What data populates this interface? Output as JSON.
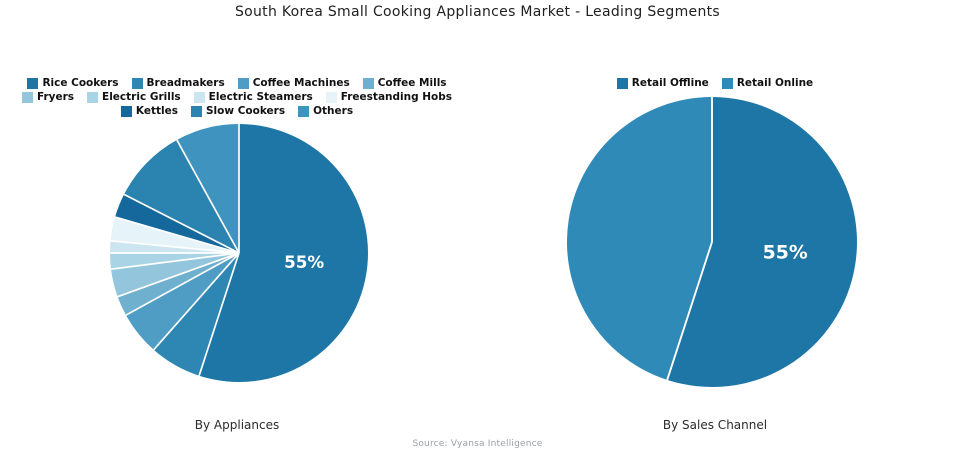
{
  "page_title": "South Korea Small Cooking Appliances Market - Leading Segments",
  "source_note": "Source: Vyansa Intelligence",
  "colors": {
    "background": "#ffffff",
    "separator": "#ffffff",
    "data_label_text": "#ffffff",
    "title_text": "#212121",
    "legend_text": "#111111",
    "source_text": "#9aa0a6"
  },
  "chart_data": [
    {
      "type": "pie",
      "title": "By Appliances",
      "legend_position": "top",
      "direction": "clockwise",
      "start_angle_deg": 0,
      "labels": [
        "Rice Cookers",
        "Breadmakers",
        "Coffee Machines",
        "Coffee Mills",
        "Fryers",
        "Electric Grills",
        "Electric Steamers",
        "Freestanding Hobs",
        "Kettles",
        "Slow Cookers",
        "Others"
      ],
      "values": [
        55,
        6.5,
        5.5,
        2.5,
        3.5,
        2,
        1.5,
        3,
        3,
        9.5,
        8
      ],
      "colors": [
        "#1D76A6",
        "#2E86B2",
        "#4F9DC4",
        "#6FB0CF",
        "#93C6DC",
        "#A9D4E5",
        "#CBE6F1",
        "#E6F3F9",
        "#15689B",
        "#2B83B0",
        "#3E93BF"
      ],
      "data_label": {
        "text": "55%",
        "segment": "Rice Cookers"
      }
    },
    {
      "type": "pie",
      "title": "By Sales Channel",
      "legend_position": "top",
      "direction": "clockwise",
      "start_angle_deg": 0,
      "labels": [
        "Retail Offline",
        "Retail Online"
      ],
      "values": [
        55,
        45
      ],
      "colors": [
        "#1D76A6",
        "#2F8AB8"
      ],
      "data_label": {
        "text": "55%",
        "segment": "Retail Offline"
      }
    }
  ]
}
